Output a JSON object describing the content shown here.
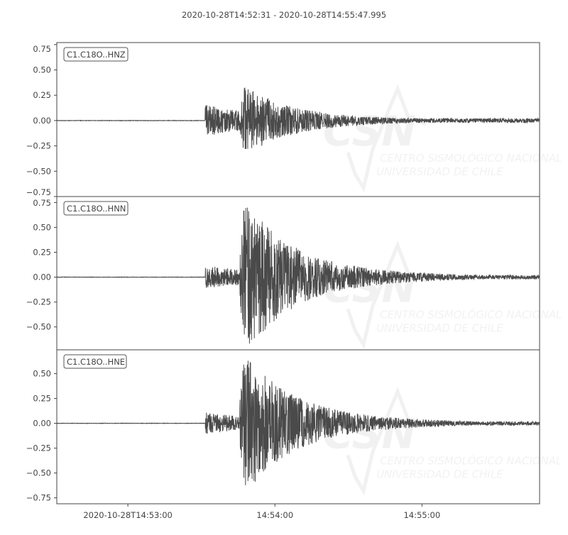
{
  "chart_data": {
    "type": "line",
    "title": "2020-10-28T14:52:31  -  2020-10-28T14:55:47.995",
    "start_time": "2020-10-28T14:52:31",
    "end_time": "2020-10-28T14:55:47.995",
    "x_ticks": [
      {
        "time_s": 29,
        "label": "2020-10-28T14:53:00"
      },
      {
        "time_s": 89,
        "label": "14:54:00"
      },
      {
        "time_s": 149,
        "label": "14:55:00"
      }
    ],
    "line_color": "#4a4a4a",
    "grid": false,
    "watermark": {
      "logo": "CSN",
      "line1": "CENTRO SISMOLÓGICO NACIONAL",
      "line2": "UNIVERSIDAD DE CHILE"
    },
    "traces": [
      {
        "name": "C1.C18O..HNZ",
        "ylim": [
          -0.75,
          0.77
        ],
        "y_ticks": [
          "0.75",
          "0.50",
          "0.25",
          "0.00",
          "−0.25",
          "−0.50",
          "−0.75"
        ],
        "y_tick_values": [
          0.75,
          0.5,
          0.25,
          0,
          -0.25,
          -0.5,
          -0.75
        ],
        "p_arrival_s": 60.5,
        "s_arrival_s": 74.5,
        "p_amp": 0.14,
        "s_amp": 0.31,
        "max": 0.33,
        "min": -0.28
      },
      {
        "name": "C1.C18O..HNN",
        "ylim": [
          -0.73,
          0.81
        ],
        "y_ticks": [
          "0.75",
          "0.50",
          "0.25",
          "0.00",
          "−0.25",
          "−0.50"
        ],
        "y_tick_values": [
          0.75,
          0.5,
          0.25,
          0,
          -0.25,
          -0.5
        ],
        "p_arrival_s": 60.5,
        "s_arrival_s": 74.5,
        "p_amp": 0.1,
        "s_amp": 0.7,
        "max": 0.75,
        "min": -0.67
      },
      {
        "name": "C1.C18O..HNE",
        "ylim": [
          -0.81,
          0.74
        ],
        "y_ticks": [
          "0.50",
          "0.25",
          "0.00",
          "−0.25",
          "−0.50",
          "−0.75"
        ],
        "y_tick_values": [
          0.5,
          0.25,
          0,
          -0.25,
          -0.5,
          -0.75
        ],
        "p_arrival_s": 60.5,
        "s_arrival_s": 74.5,
        "p_amp": 0.09,
        "s_amp": 0.65,
        "max": 0.63,
        "min": -0.7
      }
    ]
  }
}
